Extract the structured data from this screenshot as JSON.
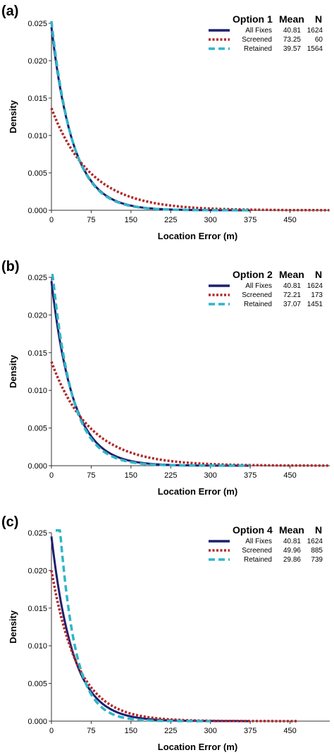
{
  "chart_data": [
    {
      "type": "line",
      "panel_label": "(a)",
      "legend_title": "Option 1",
      "legend_headers": {
        "mean": "Mean",
        "n": "N"
      },
      "xlabel": "Location Error (m)",
      "ylabel": "Density",
      "xlim": [
        0,
        525
      ],
      "ylim": [
        0,
        0.025
      ],
      "xticks": [
        "0",
        "75",
        "150",
        "225",
        "300",
        "375",
        "450"
      ],
      "yticks": [
        "0.000",
        "0.005",
        "0.010",
        "0.015",
        "0.020",
        "0.025"
      ],
      "series": [
        {
          "name": "All Fixes",
          "mean": "40.81",
          "n": "1624",
          "color": "#1f1f6e",
          "style": "solid",
          "x_max": 375,
          "y0": 0.0245,
          "decay": 40.81
        },
        {
          "name": "Screened",
          "mean": "73.25",
          "n": "60",
          "color": "#b0282a",
          "style": "dotted",
          "x_max": 525,
          "y0": 0.01365,
          "decay": 73.25
        },
        {
          "name": "Retained",
          "mean": "39.57",
          "n": "1564",
          "color": "#2fb5c8",
          "style": "dashed",
          "x_max": 375,
          "y0": 0.0253,
          "decay": 39.57
        }
      ]
    },
    {
      "type": "line",
      "panel_label": "(b)",
      "legend_title": "Option 2",
      "legend_headers": {
        "mean": "Mean",
        "n": "N"
      },
      "xlabel": "Location Error (m)",
      "ylabel": "Density",
      "xlim": [
        0,
        525
      ],
      "ylim": [
        0,
        0.025
      ],
      "xticks": [
        "0",
        "75",
        "150",
        "225",
        "300",
        "375",
        "450"
      ],
      "yticks": [
        "0.000",
        "0.005",
        "0.010",
        "0.015",
        "0.020",
        "0.025"
      ],
      "series": [
        {
          "name": "All Fixes",
          "mean": "40.81",
          "n": "1624",
          "color": "#1f1f6e",
          "style": "solid",
          "x_max": 375,
          "y0": 0.0245,
          "decay": 40.81
        },
        {
          "name": "Screened",
          "mean": "72.21",
          "n": "173",
          "color": "#b0282a",
          "style": "dotted",
          "x_max": 525,
          "y0": 0.0138,
          "decay": 72.21
        },
        {
          "name": "Retained",
          "mean": "37.07",
          "n": "1451",
          "color": "#2fb5c8",
          "style": "dashed",
          "x_max": 375,
          "y0": 0.027,
          "decay": 37.07
        }
      ]
    },
    {
      "type": "line",
      "panel_label": "(c)",
      "legend_title": "Option 4",
      "legend_headers": {
        "mean": "Mean",
        "n": "N"
      },
      "xlabel": "Location Error (m)",
      "ylabel": "Density",
      "xlim": [
        0,
        525
      ],
      "ylim": [
        0,
        0.025
      ],
      "xticks": [
        "0",
        "75",
        "150",
        "225",
        "300",
        "375",
        "450"
      ],
      "yticks": [
        "0.000",
        "0.005",
        "0.010",
        "0.015",
        "0.020",
        "0.025"
      ],
      "series": [
        {
          "name": "All Fixes",
          "mean": "40.81",
          "n": "1624",
          "color": "#1f1f6e",
          "style": "solid",
          "x_max": 375,
          "y0": 0.0245,
          "decay": 40.81
        },
        {
          "name": "Screened",
          "mean": "49.96",
          "n": "885",
          "color": "#b0282a",
          "style": "dotted",
          "x_max": 465,
          "y0": 0.02,
          "decay": 49.96
        },
        {
          "name": "Retained",
          "mean": "29.86",
          "n": "739",
          "color": "#2fb5c8",
          "style": "dashed",
          "x_max": 300,
          "x_min": 8,
          "y0": 0.0335,
          "decay": 29.86
        }
      ]
    }
  ]
}
